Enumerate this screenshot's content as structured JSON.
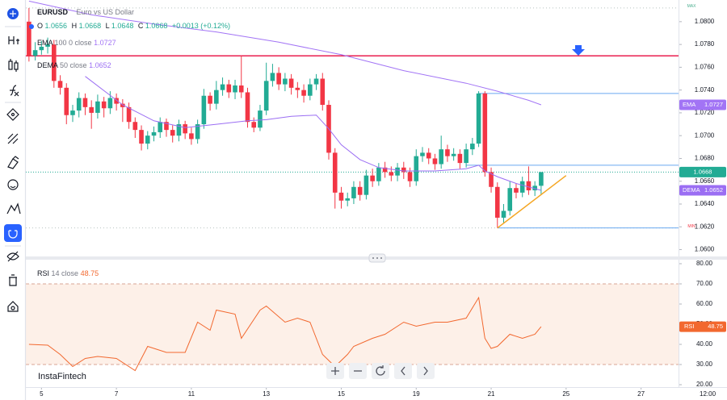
{
  "chart_data": [
    {
      "type": "candlestick",
      "symbol": "EURUSD",
      "description": "Euro vs US Dollar",
      "ohlc_labels": [
        "O",
        "H",
        "L",
        "C"
      ],
      "change": "+0.0013 (+0.12%)",
      "up_color": "#22ab94",
      "down_color": "#f23645",
      "xlim": [
        -0.5,
        104
      ],
      "ylim": [
        1.0594,
        1.0819
      ],
      "yticks": [
        {
          "value": 1.08,
          "label": "1.0800"
        },
        {
          "value": 1.078,
          "label": "1.0780"
        },
        {
          "value": 1.076,
          "label": "1.0760"
        },
        {
          "value": 1.074,
          "label": "1.0740"
        },
        {
          "value": 1.072,
          "label": "1.0720"
        },
        {
          "value": 1.07,
          "label": "1.0700"
        },
        {
          "value": 1.068,
          "label": "1.0680"
        },
        {
          "value": 1.066,
          "label": "1.0660"
        },
        {
          "value": 1.064,
          "label": "1.0640"
        },
        {
          "value": 1.062,
          "label": "1.0620"
        },
        {
          "value": 1.06,
          "label": "1.0600"
        }
      ],
      "x": [
        0,
        1,
        2,
        3,
        4,
        5,
        6,
        7,
        8,
        9,
        10,
        11,
        12,
        13,
        14,
        15,
        16,
        17,
        18,
        19,
        20,
        21,
        22,
        23,
        24,
        25,
        26,
        27,
        28,
        29,
        30,
        31,
        32,
        33,
        34,
        35,
        36,
        37,
        38,
        39,
        40,
        41,
        42,
        43,
        44,
        45,
        46,
        47,
        48,
        49,
        50,
        51,
        52,
        53,
        54,
        55,
        56,
        57,
        58,
        59,
        60,
        61,
        62,
        63,
        64,
        65,
        66,
        67,
        68,
        69,
        70,
        71,
        72,
        73,
        74,
        75,
        76,
        77,
        78,
        79,
        80,
        81,
        82
      ],
      "open": [
        1.08,
        1.077,
        1.0775,
        1.0778,
        1.078,
        1.0748,
        1.0742,
        1.0718,
        1.0722,
        1.0733,
        1.0725,
        1.072,
        1.073,
        1.0724,
        1.0733,
        1.0728,
        1.0725,
        1.0712,
        1.0705,
        1.0693,
        1.07,
        1.0703,
        1.0712,
        1.0705,
        1.07,
        1.071,
        1.0702,
        1.0697,
        1.071,
        1.0735,
        1.0728,
        1.074,
        1.0745,
        1.0738,
        1.0744,
        1.0738,
        1.0712,
        1.0707,
        1.0722,
        1.0748,
        1.0755,
        1.0745,
        1.075,
        1.0742,
        1.074,
        1.0735,
        1.0745,
        1.075,
        1.0727,
        1.0685,
        1.065,
        1.0643,
        1.0645,
        1.0655,
        1.0648,
        1.0665,
        1.066,
        1.0672,
        1.0668,
        1.0665,
        1.0672,
        1.0668,
        1.066,
        1.0682,
        1.0685,
        1.068,
        1.0675,
        1.0688,
        1.0682,
        1.0684,
        1.0676,
        1.0688,
        1.0693,
        1.0737,
        1.0668,
        1.0655,
        1.0628,
        1.0634,
        1.0654,
        1.065,
        1.066,
        1.0652,
        1.0656
      ],
      "high": [
        1.0812,
        1.0782,
        1.0783,
        1.0786,
        1.0784,
        1.0753,
        1.0746,
        1.0727,
        1.0738,
        1.0737,
        1.0731,
        1.0736,
        1.0734,
        1.0739,
        1.0737,
        1.0732,
        1.0729,
        1.0716,
        1.0709,
        1.0704,
        1.0708,
        1.0716,
        1.0715,
        1.0709,
        1.0714,
        1.0713,
        1.0707,
        1.0714,
        1.0741,
        1.0738,
        1.0748,
        1.0751,
        1.0749,
        1.0749,
        1.077,
        1.0742,
        1.0716,
        1.0727,
        1.0764,
        1.0763,
        1.076,
        1.0755,
        1.0754,
        1.0747,
        1.0745,
        1.075,
        1.0754,
        1.0755,
        1.0731,
        1.0689,
        1.0655,
        1.065,
        1.066,
        1.066,
        1.067,
        1.0671,
        1.0676,
        1.0677,
        1.0673,
        1.0676,
        1.0677,
        1.0672,
        1.0688,
        1.069,
        1.0689,
        1.0684,
        1.07,
        1.0692,
        1.0689,
        1.0688,
        1.0693,
        1.0698,
        1.0739,
        1.0739,
        1.0672,
        1.0659,
        1.064,
        1.066,
        1.0658,
        1.0664,
        1.0673,
        1.066,
        1.0668
      ],
      "low": [
        1.0765,
        1.0766,
        1.0771,
        1.0772,
        1.0742,
        1.0736,
        1.071,
        1.0712,
        1.0716,
        1.0718,
        1.0706,
        1.0715,
        1.0716,
        1.0719,
        1.0722,
        1.0712,
        1.0706,
        1.0698,
        1.0687,
        1.0688,
        1.0695,
        1.0698,
        1.0699,
        1.0694,
        1.0695,
        1.0697,
        1.0692,
        1.0693,
        1.0706,
        1.0722,
        1.0723,
        1.0735,
        1.0733,
        1.0732,
        1.0733,
        1.0707,
        1.0703,
        1.0704,
        1.0718,
        1.0743,
        1.074,
        1.0739,
        1.0736,
        1.0733,
        1.0729,
        1.0731,
        1.074,
        1.0722,
        1.0679,
        1.0636,
        1.0636,
        1.0638,
        1.064,
        1.0643,
        1.0644,
        1.0655,
        1.0656,
        1.0663,
        1.066,
        1.066,
        1.0662,
        1.0655,
        1.0656,
        1.0677,
        1.0675,
        1.067,
        1.0671,
        1.0677,
        1.0678,
        1.0671,
        1.0672,
        1.0683,
        1.069,
        1.0664,
        1.065,
        1.0619,
        1.0623,
        1.063,
        1.0645,
        1.0646,
        1.0648,
        1.0647,
        1.0648
      ],
      "close": [
        1.077,
        1.0775,
        1.0778,
        1.078,
        1.0748,
        1.0742,
        1.0718,
        1.0722,
        1.0733,
        1.0725,
        1.072,
        1.073,
        1.0724,
        1.0733,
        1.0728,
        1.0725,
        1.0712,
        1.0705,
        1.0693,
        1.07,
        1.0703,
        1.0712,
        1.0705,
        1.07,
        1.071,
        1.0702,
        1.0697,
        1.071,
        1.0735,
        1.0728,
        1.074,
        1.0745,
        1.0738,
        1.0744,
        1.0738,
        1.0712,
        1.0707,
        1.0722,
        1.0748,
        1.0755,
        1.0745,
        1.075,
        1.0742,
        1.074,
        1.0735,
        1.0745,
        1.075,
        1.0727,
        1.0685,
        1.065,
        1.0643,
        1.0645,
        1.0655,
        1.0648,
        1.0665,
        1.066,
        1.0672,
        1.0668,
        1.0665,
        1.0672,
        1.0668,
        1.066,
        1.0682,
        1.0685,
        1.068,
        1.0675,
        1.0688,
        1.0682,
        1.0684,
        1.0676,
        1.0688,
        1.0693,
        1.0737,
        1.0668,
        1.0655,
        1.0628,
        1.0634,
        1.0654,
        1.065,
        1.066,
        1.0652,
        1.0656,
        1.0668
      ],
      "indicators": [
        {
          "name": "EMA",
          "params": "100 0 close",
          "color": "#a274f5",
          "x": [
            0,
            10,
            20,
            30,
            40,
            50,
            60,
            70,
            75,
            80,
            82
          ],
          "values": [
            1.0818,
            1.0806,
            1.0798,
            1.0791,
            1.0782,
            1.0771,
            1.0757,
            1.0746,
            1.0739,
            1.0731,
            1.0727
          ]
        },
        {
          "name": "DEMA",
          "params": "50 close",
          "color": "#9b6ef3",
          "x": [
            9,
            15,
            20,
            25,
            30,
            35,
            38,
            42,
            46,
            48,
            50,
            53,
            56,
            60,
            65,
            70,
            72,
            73,
            75,
            78,
            80,
            82
          ],
          "values": [
            1.0752,
            1.0727,
            1.0713,
            1.0707,
            1.071,
            1.0713,
            1.0714,
            1.0717,
            1.0718,
            1.0706,
            1.0692,
            1.0679,
            1.0672,
            1.0669,
            1.0669,
            1.0671,
            1.0674,
            1.0669,
            1.0664,
            1.0658,
            1.0655,
            1.0652
          ]
        }
      ],
      "levels": [
        {
          "value": 1.077,
          "color": "#e91e4f"
        },
        {
          "value": 1.0737,
          "color": "#6aa9f0",
          "x": 72
        },
        {
          "value": 1.0674,
          "color": "#6aa9f0",
          "x": 70
        },
        {
          "value": 1.0619,
          "color": "#6aa9f0",
          "x": 75
        }
      ],
      "max": {
        "label": "MAX",
        "value": 1.0812
      },
      "min": {
        "label": "MIN",
        "value": 1.0619
      },
      "trendline": {
        "x": [
          75,
          86
        ],
        "values": [
          1.0619,
          1.0665
        ],
        "color": "#f5a623"
      },
      "watermark": "InstaFintech"
    },
    {
      "type": "line",
      "name": "RSI",
      "params": "14 close",
      "color": "#f2682f",
      "xlim": [
        -0.5,
        104
      ],
      "ylim": [
        18.8,
        82
      ],
      "yticks": [
        {
          "value": 80,
          "label": "80.00"
        },
        {
          "value": 70,
          "label": "70.00"
        },
        {
          "value": 60,
          "label": "60.00"
        },
        {
          "value": 50,
          "label": "50.00"
        },
        {
          "value": 40,
          "label": "40.00"
        },
        {
          "value": 30,
          "label": "30.00"
        },
        {
          "value": 20,
          "label": "20.00"
        }
      ],
      "bands": [
        70,
        30
      ],
      "x": [
        0,
        3,
        5,
        7,
        9,
        11,
        14,
        17,
        19,
        22,
        25,
        27,
        29,
        30,
        33,
        34,
        37,
        38,
        41,
        43,
        45,
        47,
        49,
        51,
        52,
        55,
        57,
        60,
        62,
        65,
        67,
        70,
        72,
        73,
        74,
        75,
        77,
        79,
        81,
        82
      ],
      "values": [
        40,
        39.6,
        35,
        29,
        33,
        34,
        33,
        27,
        39,
        36,
        36,
        51,
        47,
        57,
        55,
        43,
        57,
        59,
        51,
        53,
        51,
        35,
        29,
        35,
        39,
        43,
        45,
        51,
        49,
        51,
        51,
        53,
        63.2,
        43,
        38,
        39,
        45,
        43,
        45,
        48.75
      ],
      "xticks": [
        {
          "value": 2,
          "label": "5"
        },
        {
          "value": 14,
          "label": "7"
        },
        {
          "value": 26,
          "label": "11"
        },
        {
          "value": 38,
          "label": "13"
        },
        {
          "value": 50,
          "label": "15"
        },
        {
          "value": 62,
          "label": "19"
        },
        {
          "value": 74,
          "label": "21"
        },
        {
          "value": 86,
          "label": "25"
        },
        {
          "value": 98,
          "label": "27"
        }
      ],
      "corner_label": "12:00"
    }
  ]
}
